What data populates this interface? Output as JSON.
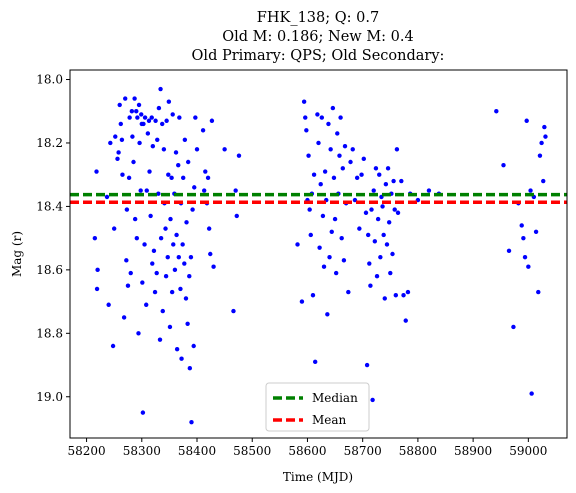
{
  "chart_data": {
    "type": "scatter",
    "title_lines": [
      "FHK_138; Q: 0.7",
      "Old M: 0.186; New M: 0.4",
      "Old Primary: QPS; Old Secondary:"
    ],
    "xlabel": "Time (MJD)",
    "ylabel": "Mag (r)",
    "xlim": [
      58170,
      59070
    ],
    "ylim": [
      19.13,
      17.97
    ],
    "y_inverted": true,
    "xticks": [
      58200,
      58300,
      58400,
      58500,
      58600,
      58700,
      58800,
      58900,
      59000
    ],
    "yticks": [
      18.0,
      18.2,
      18.4,
      18.6,
      18.8,
      19.0
    ],
    "xtick_labels": [
      "58200",
      "58300",
      "58400",
      "58500",
      "58600",
      "58700",
      "58800",
      "58900",
      "59000"
    ],
    "ytick_labels": [
      "18.0",
      "18.2",
      "18.4",
      "18.6",
      "18.8",
      "19.0"
    ],
    "grid": false,
    "legend_placement": "lower-center",
    "point_color": "#0000ff",
    "reference_lines": [
      {
        "name": "Median",
        "y": 18.363,
        "color": "#008000",
        "style": "dashed"
      },
      {
        "name": "Mean",
        "y": 18.387,
        "color": "#ff0000",
        "style": "dashed"
      }
    ],
    "series": [
      {
        "points": [
          [
            58215,
            18.5
          ],
          [
            58218,
            18.29
          ],
          [
            58220,
            18.6
          ],
          [
            58219,
            18.66
          ],
          [
            58237,
            18.37
          ],
          [
            58240,
            18.71
          ],
          [
            58243,
            18.2
          ],
          [
            58248,
            18.84
          ],
          [
            58250,
            18.47
          ],
          [
            58252,
            18.18
          ],
          [
            58256,
            18.25
          ],
          [
            58258,
            18.23
          ],
          [
            58260,
            18.08
          ],
          [
            58262,
            18.14
          ],
          [
            58264,
            18.19
          ],
          [
            58265,
            18.3
          ],
          [
            58268,
            18.75
          ],
          [
            58270,
            18.06
          ],
          [
            58272,
            18.57
          ],
          [
            58273,
            18.41
          ],
          [
            58275,
            18.65
          ],
          [
            58277,
            18.31
          ],
          [
            58278,
            18.12
          ],
          [
            58280,
            18.61
          ],
          [
            58282,
            18.1
          ],
          [
            58283,
            18.18
          ],
          [
            58285,
            18.26
          ],
          [
            58287,
            18.06
          ],
          [
            58288,
            18.44
          ],
          [
            58290,
            18.1
          ],
          [
            58291,
            18.5
          ],
          [
            58292,
            18.12
          ],
          [
            58294,
            18.8
          ],
          [
            58295,
            18.08
          ],
          [
            58296,
            18.2
          ],
          [
            58298,
            18.35
          ],
          [
            58299,
            18.11
          ],
          [
            58300,
            18.14
          ],
          [
            58301,
            18.64
          ],
          [
            58302,
            19.05
          ],
          [
            58303,
            18.14
          ],
          [
            58305,
            18.52
          ],
          [
            58306,
            18.12
          ],
          [
            58308,
            18.71
          ],
          [
            58309,
            18.35
          ],
          [
            58311,
            18.17
          ],
          [
            58313,
            18.13
          ],
          [
            58314,
            18.29
          ],
          [
            58316,
            18.43
          ],
          [
            58318,
            18.12
          ],
          [
            58319,
            18.58
          ],
          [
            58320,
            18.21
          ],
          [
            58322,
            18.54
          ],
          [
            58324,
            18.67
          ],
          [
            58325,
            18.13
          ],
          [
            58327,
            18.61
          ],
          [
            58328,
            18.19
          ],
          [
            58330,
            18.36
          ],
          [
            58331,
            18.09
          ],
          [
            58333,
            18.82
          ],
          [
            58334,
            18.03
          ],
          [
            58335,
            18.5
          ],
          [
            58337,
            18.14
          ],
          [
            58338,
            18.73
          ],
          [
            58340,
            18.22
          ],
          [
            58341,
            18.39
          ],
          [
            58343,
            18.47
          ],
          [
            58344,
            18.62
          ],
          [
            58345,
            18.13
          ],
          [
            58347,
            18.56
          ],
          [
            58348,
            18.3
          ],
          [
            58349,
            18.07
          ],
          [
            58351,
            18.78
          ],
          [
            58352,
            18.44
          ],
          [
            58354,
            18.31
          ],
          [
            58355,
            18.67
          ],
          [
            58356,
            18.11
          ],
          [
            58357,
            18.52
          ],
          [
            58359,
            18.36
          ],
          [
            58360,
            18.6
          ],
          [
            58362,
            18.23
          ],
          [
            58363,
            18.49
          ],
          [
            58364,
            18.85
          ],
          [
            58366,
            18.27
          ],
          [
            58367,
            18.56
          ],
          [
            58368,
            18.12
          ],
          [
            58370,
            18.66
          ],
          [
            58371,
            18.39
          ],
          [
            58372,
            18.88
          ],
          [
            58374,
            18.52
          ],
          [
            58375,
            18.31
          ],
          [
            58377,
            18.58
          ],
          [
            58378,
            18.19
          ],
          [
            58380,
            18.69
          ],
          [
            58381,
            18.45
          ],
          [
            58383,
            18.77
          ],
          [
            58384,
            18.26
          ],
          [
            58386,
            18.62
          ],
          [
            58387,
            18.91
          ],
          [
            58389,
            18.56
          ],
          [
            58390,
            19.08
          ],
          [
            58392,
            18.41
          ],
          [
            58394,
            18.84
          ],
          [
            58395,
            18.34
          ],
          [
            58397,
            18.12
          ],
          [
            58400,
            18.22
          ],
          [
            58411,
            18.16
          ],
          [
            58413,
            18.35
          ],
          [
            58415,
            18.29
          ],
          [
            58418,
            18.39
          ],
          [
            58420,
            18.31
          ],
          [
            58422,
            18.47
          ],
          [
            58424,
            18.55
          ],
          [
            58427,
            18.13
          ],
          [
            58430,
            18.59
          ],
          [
            58450,
            18.22
          ],
          [
            58466,
            18.73
          ],
          [
            58470,
            18.35
          ],
          [
            58472,
            18.43
          ],
          [
            58476,
            18.24
          ],
          [
            58582,
            18.52
          ],
          [
            58590,
            18.7
          ],
          [
            58594,
            18.07
          ],
          [
            58596,
            18.12
          ],
          [
            58598,
            18.16
          ],
          [
            58600,
            18.38
          ],
          [
            58602,
            18.24
          ],
          [
            58604,
            18.41
          ],
          [
            58606,
            18.49
          ],
          [
            58608,
            18.36
          ],
          [
            58610,
            18.68
          ],
          [
            58612,
            18.3
          ],
          [
            58614,
            18.89
          ],
          [
            58618,
            18.11
          ],
          [
            58620,
            18.2
          ],
          [
            58622,
            18.53
          ],
          [
            58624,
            18.33
          ],
          [
            58626,
            18.12
          ],
          [
            58628,
            18.43
          ],
          [
            58630,
            18.59
          ],
          [
            58632,
            18.29
          ],
          [
            58634,
            18.38
          ],
          [
            58636,
            18.74
          ],
          [
            58638,
            18.14
          ],
          [
            58640,
            18.56
          ],
          [
            58642,
            18.22
          ],
          [
            58644,
            18.48
          ],
          [
            58646,
            18.09
          ],
          [
            58648,
            18.31
          ],
          [
            58650,
            18.44
          ],
          [
            58652,
            18.61
          ],
          [
            58654,
            18.17
          ],
          [
            58656,
            18.36
          ],
          [
            58658,
            18.24
          ],
          [
            58660,
            18.12
          ],
          [
            58662,
            18.5
          ],
          [
            58664,
            18.28
          ],
          [
            58666,
            18.57
          ],
          [
            58668,
            18.21
          ],
          [
            58670,
            18.39
          ],
          [
            58674,
            18.67
          ],
          [
            58678,
            18.26
          ],
          [
            58682,
            18.22
          ],
          [
            58686,
            18.38
          ],
          [
            58690,
            18.31
          ],
          [
            58694,
            18.47
          ],
          [
            58698,
            18.3
          ],
          [
            58702,
            18.25
          ],
          [
            58706,
            18.42
          ],
          [
            58708,
            18.9
          ],
          [
            58710,
            18.49
          ],
          [
            58712,
            18.58
          ],
          [
            58714,
            18.65
          ],
          [
            58716,
            18.41
          ],
          [
            58718,
            19.01
          ],
          [
            58720,
            18.35
          ],
          [
            58722,
            18.51
          ],
          [
            58724,
            18.28
          ],
          [
            58726,
            18.62
          ],
          [
            58728,
            18.44
          ],
          [
            58730,
            18.3
          ],
          [
            58732,
            18.56
          ],
          [
            58734,
            18.37
          ],
          [
            58736,
            18.4
          ],
          [
            58738,
            18.49
          ],
          [
            58740,
            18.69
          ],
          [
            58742,
            18.33
          ],
          [
            58744,
            18.52
          ],
          [
            58746,
            18.28
          ],
          [
            58748,
            18.45
          ],
          [
            58750,
            18.61
          ],
          [
            58752,
            18.36
          ],
          [
            58754,
            18.55
          ],
          [
            58756,
            18.32
          ],
          [
            58758,
            18.41
          ],
          [
            58760,
            18.68
          ],
          [
            58762,
            18.22
          ],
          [
            58764,
            18.42
          ],
          [
            58770,
            18.32
          ],
          [
            58774,
            18.68
          ],
          [
            58778,
            18.76
          ],
          [
            58782,
            18.67
          ],
          [
            58786,
            18.36
          ],
          [
            58800,
            18.38
          ],
          [
            58820,
            18.35
          ],
          [
            58838,
            18.36
          ],
          [
            58942,
            18.1
          ],
          [
            58955,
            18.27
          ],
          [
            58965,
            18.54
          ],
          [
            58973,
            18.78
          ],
          [
            58982,
            18.39
          ],
          [
            58988,
            18.46
          ],
          [
            58991,
            18.5
          ],
          [
            58994,
            18.56
          ],
          [
            58997,
            18.13
          ],
          [
            59000,
            18.59
          ],
          [
            59004,
            18.35
          ],
          [
            59006,
            18.99
          ],
          [
            59010,
            18.37
          ],
          [
            59014,
            18.48
          ],
          [
            59018,
            18.67
          ],
          [
            59021,
            18.24
          ],
          [
            59024,
            18.2
          ],
          [
            59027,
            18.32
          ],
          [
            59029,
            18.15
          ],
          [
            59031,
            18.18
          ]
        ]
      }
    ]
  }
}
